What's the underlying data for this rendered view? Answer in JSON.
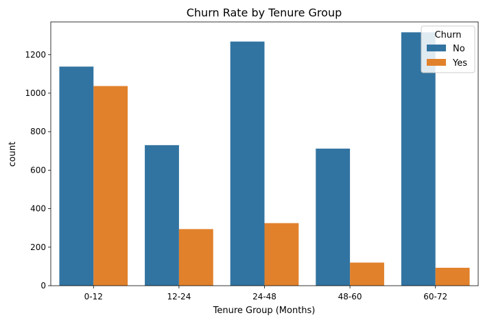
{
  "chart_data": {
    "type": "bar",
    "title": "Churn Rate by Tenure Group",
    "xlabel": "Tenure Group (Months)",
    "ylabel": "count",
    "categories": [
      "0-12",
      "12-24",
      "24-48",
      "48-60",
      "60-72"
    ],
    "series": [
      {
        "name": "No",
        "color": "#3274a1",
        "values": [
          1138,
          730,
          1268,
          712,
          1316
        ]
      },
      {
        "name": "Yes",
        "color": "#e1812c",
        "values": [
          1037,
          294,
          325,
          120,
          93
        ]
      }
    ],
    "ylim": [
      0,
      1370
    ],
    "yticks": [
      0,
      200,
      400,
      600,
      800,
      1000,
      1200
    ],
    "grid": false,
    "legend": {
      "title": "Churn",
      "placement": "top-right",
      "entries": [
        "No",
        "Yes"
      ]
    }
  }
}
